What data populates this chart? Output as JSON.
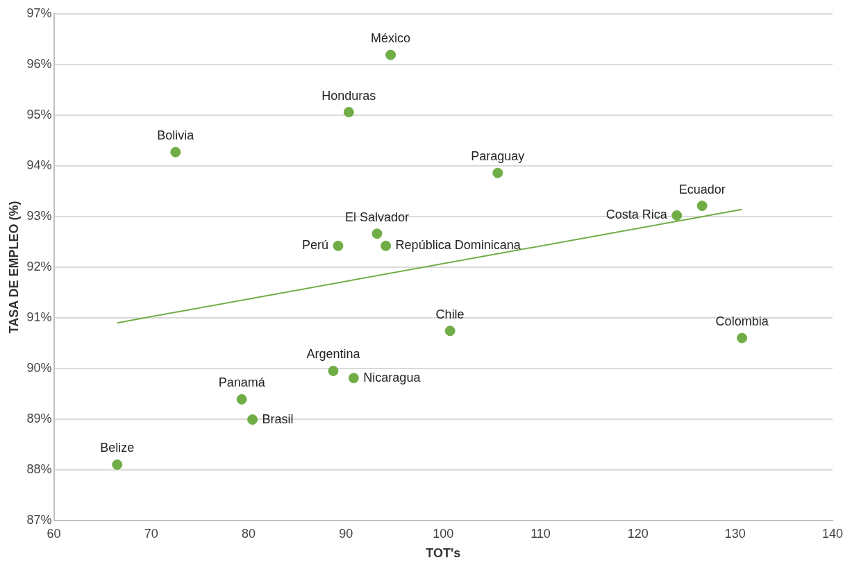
{
  "chart_data": {
    "type": "scatter",
    "xlabel": "TOT's",
    "ylabel": "TASA DE EMPLEO (%)",
    "xlim": [
      60,
      140
    ],
    "xticks": [
      60,
      70,
      80,
      90,
      100,
      110,
      120,
      130,
      140
    ],
    "ylim": [
      87,
      97
    ],
    "yticks": [
      {
        "value": 87,
        "label": "87%"
      },
      {
        "value": 88,
        "label": "88%"
      },
      {
        "value": 89,
        "label": "89%"
      },
      {
        "value": 90,
        "label": "90%"
      },
      {
        "value": 91,
        "label": "91%"
      },
      {
        "value": 92,
        "label": "92%"
      },
      {
        "value": 93,
        "label": "93%"
      },
      {
        "value": 94,
        "label": "94%"
      },
      {
        "value": 95,
        "label": "95%"
      },
      {
        "value": 96,
        "label": "96%"
      },
      {
        "value": 97,
        "label": "97%"
      }
    ],
    "grid": "y",
    "legend": false,
    "series": [
      {
        "marker": "circle",
        "color": "#70ad47",
        "x": [
          94.6,
          90.3,
          72.5,
          105.6,
          126.6,
          124.0,
          93.2,
          89.2,
          94.1,
          100.7,
          130.7,
          88.7,
          90.8,
          79.3,
          80.4,
          66.5
        ],
        "values": [
          96.19,
          95.06,
          94.27,
          93.86,
          93.21,
          93.02,
          92.66,
          92.42,
          92.42,
          90.74,
          90.6,
          89.95,
          89.81,
          89.39,
          88.99,
          88.1
        ]
      },
      {
        "type": "line",
        "color": "#70ad47",
        "x": [
          66.5,
          130.7
        ],
        "values": [
          90.9,
          93.14
        ]
      }
    ],
    "annotations": [
      {
        "text": "México",
        "x": 94.6,
        "y": 96.19
      },
      {
        "text": "Honduras",
        "x": 90.3,
        "y": 95.06
      },
      {
        "text": "Bolivia",
        "x": 72.5,
        "y": 94.27
      },
      {
        "text": "Paraguay",
        "x": 105.6,
        "y": 93.86
      },
      {
        "text": "Ecuador",
        "x": 126.6,
        "y": 93.21
      },
      {
        "text": "Costa Rica",
        "x": 124.0,
        "y": 93.02
      },
      {
        "text": "El Salvador",
        "x": 93.2,
        "y": 92.66
      },
      {
        "text": "Perú",
        "x": 89.2,
        "y": 92.42
      },
      {
        "text": "República Dominicana",
        "x": 94.1,
        "y": 92.42
      },
      {
        "text": "Chile",
        "x": 100.7,
        "y": 90.74
      },
      {
        "text": "Colombia",
        "x": 130.7,
        "y": 90.6
      },
      {
        "text": "Argentina",
        "x": 88.7,
        "y": 89.95
      },
      {
        "text": "Nicaragua",
        "x": 90.8,
        "y": 89.81
      },
      {
        "text": "Panamá",
        "x": 79.3,
        "y": 89.39
      },
      {
        "text": "Brasil",
        "x": 80.4,
        "y": 88.99
      },
      {
        "text": "Belize",
        "x": 66.5,
        "y": 88.1
      }
    ]
  }
}
